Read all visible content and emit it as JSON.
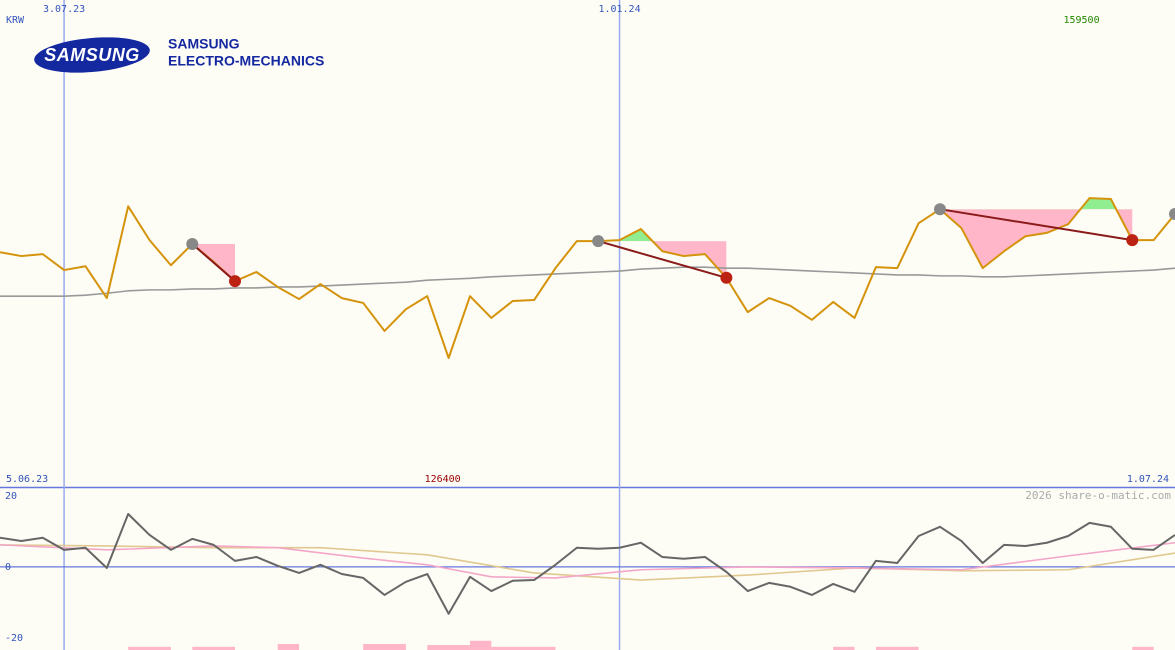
{
  "logo": {
    "brand": "SAMSUNG",
    "company": [
      "SAMSUNG",
      "ELECTRO-MECHANICS"
    ]
  },
  "watermark": "2026 share-o-matic.com",
  "chart_data": [
    {
      "type": "line",
      "currency": "KRW",
      "high_label": 159500,
      "low_label": 126400,
      "x": [
        0,
        1,
        2,
        3,
        4,
        5,
        6,
        7,
        8,
        9,
        10,
        11,
        12,
        13,
        14,
        15,
        16,
        17,
        18,
        19,
        20,
        21,
        22,
        23,
        24,
        25,
        26,
        27,
        28,
        29,
        30,
        31,
        32,
        33,
        34,
        35,
        36,
        37,
        38,
        39,
        40,
        41,
        42,
        43,
        44,
        45,
        46,
        47,
        48,
        49,
        50,
        51,
        52,
        53,
        54,
        55
      ],
      "xlim": [
        0,
        55
      ],
      "xticks": [
        {
          "value": 0,
          "label": "5.06.23"
        },
        {
          "value": 3,
          "label": "3.07.23"
        },
        {
          "value": 29,
          "label": "1.01.24"
        },
        {
          "value": 55,
          "label": "1.07.24"
        }
      ],
      "ylim": [
        99700,
        200500
      ],
      "series": [
        {
          "color": "#d4930a",
          "values": [
            148300,
            147500,
            147900,
            144600,
            145400,
            138800,
            157800,
            150800,
            145600,
            150000,
            146300,
            142300,
            144200,
            141100,
            138600,
            141700,
            138800,
            137800,
            132000,
            136500,
            139200,
            126400,
            139200,
            134700,
            138200,
            138400,
            145000,
            150600,
            150600,
            150800,
            153100,
            148500,
            147500,
            147900,
            143000,
            135900,
            138800,
            137200,
            134300,
            138000,
            134700,
            145200,
            145000,
            154300,
            157200,
            153300,
            145000,
            148500,
            151600,
            152300,
            154100,
            159500,
            159300,
            150800,
            150800,
            156200
          ]
        },
        {
          "color": "#999999",
          "values": [
            139200,
            139200,
            139200,
            139200,
            139400,
            139800,
            140300,
            140500,
            140500,
            140700,
            140700,
            140900,
            140900,
            141100,
            141100,
            141300,
            141500,
            141700,
            141900,
            142100,
            142500,
            142700,
            142900,
            143200,
            143400,
            143600,
            143800,
            144000,
            144200,
            144400,
            144800,
            145000,
            145200,
            145200,
            145000,
            145000,
            144800,
            144600,
            144400,
            144200,
            144000,
            143800,
            143600,
            143600,
            143400,
            143400,
            143200,
            143200,
            143400,
            143600,
            143800,
            144000,
            144200,
            144400,
            144600,
            145000
          ]
        }
      ],
      "trades": [
        {
          "buy": 9,
          "sell": 11
        },
        {
          "buy": 28,
          "sell": 34
        },
        {
          "buy": 44,
          "sell": 53
        },
        {
          "buy": 55
        }
      ],
      "gain_color": "#90ee90",
      "loss_color": "#ffb6c8",
      "buy_color": "#888888",
      "sell_color": "#bb2211",
      "trade_line_color": "#8b1a1a"
    },
    {
      "type": "line",
      "x": [
        0,
        1,
        2,
        3,
        4,
        5,
        6,
        7,
        8,
        9,
        10,
        11,
        12,
        13,
        14,
        15,
        16,
        17,
        18,
        19,
        20,
        21,
        22,
        23,
        24,
        25,
        26,
        27,
        28,
        29,
        30,
        31,
        32,
        33,
        34,
        35,
        36,
        37,
        38,
        39,
        40,
        41,
        42,
        43,
        44,
        45,
        46,
        47,
        48,
        49,
        50,
        51,
        52,
        53,
        54,
        55
      ],
      "xlim": [
        0,
        55
      ],
      "ylim": [
        -23.4,
        22.5
      ],
      "yticks": [
        -20,
        0,
        20
      ],
      "series": [
        {
          "color": "#666666",
          "values": [
            8.2,
            7.3,
            8.2,
            4.8,
            5.4,
            -0.3,
            14.9,
            9.0,
            4.8,
            7.9,
            6.2,
            1.7,
            2.8,
            0.3,
            -1.7,
            0.6,
            -2.0,
            -3.1,
            -7.9,
            -4.2,
            -2.0,
            -13.2,
            -2.8,
            -6.8,
            -3.9,
            -3.7,
            0.6,
            5.4,
            5.1,
            5.4,
            6.8,
            2.8,
            2.3,
            2.8,
            -1.4,
            -6.8,
            -4.5,
            -5.6,
            -7.9,
            -4.8,
            -7.0,
            1.7,
            1.1,
            8.7,
            11.3,
            7.3,
            1.1,
            6.2,
            5.9,
            6.8,
            8.7,
            12.4,
            11.3,
            5.1,
            4.8,
            9.0
          ]
        },
        {
          "color": "#f4a6c8",
          "x": [
            0,
            5,
            10,
            13,
            17,
            20,
            23,
            26,
            30,
            35,
            40,
            45,
            50,
            55
          ],
          "values": [
            6.2,
            4.8,
            5.9,
            5.4,
            2.5,
            0.6,
            -2.8,
            -3.1,
            -0.8,
            0,
            -0.3,
            -0.8,
            3.1,
            6.8
          ]
        },
        {
          "color": "#e0c890",
          "x": [
            0,
            5,
            10,
            15,
            20,
            25,
            30,
            35,
            40,
            45,
            50,
            55
          ],
          "values": [
            6.2,
            5.9,
            5.4,
            5.4,
            3.4,
            -1.7,
            -3.7,
            -2.3,
            -0.3,
            -1.1,
            -0.8,
            3.9
          ]
        }
      ],
      "bars": {
        "color": "#ffb6c8",
        "x_start": [
          6,
          9,
          13,
          17,
          20,
          22,
          23,
          39,
          41,
          53
        ],
        "x_end": [
          8,
          11,
          14,
          19,
          22,
          23,
          26,
          40,
          43,
          54
        ],
        "values": [
          -22.5,
          -22.5,
          -21.7,
          -21.7,
          -22,
          -20.8,
          -22.5,
          -22.5,
          -22.5,
          -22.5
        ]
      }
    }
  ]
}
